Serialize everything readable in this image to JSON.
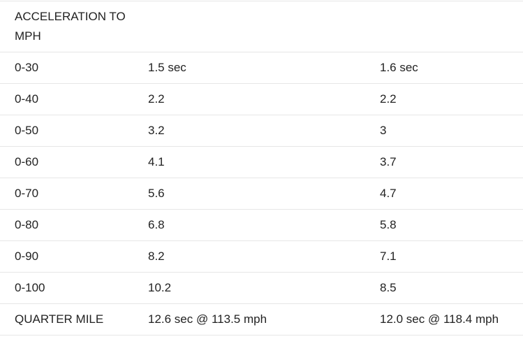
{
  "table": {
    "header": [
      "ACCELERATION TO MPH"
    ],
    "rows": [
      [
        "0-30",
        "1.5 sec",
        "1.6 sec"
      ],
      [
        "0-40",
        "2.2",
        "2.2"
      ],
      [
        "0-50",
        "3.2",
        "3"
      ],
      [
        "0-60",
        "4.1",
        "3.7"
      ],
      [
        "0-70",
        "5.6",
        "4.7"
      ],
      [
        "0-80",
        "6.8",
        "5.8"
      ],
      [
        "0-90",
        "8.2",
        "7.1"
      ],
      [
        "0-100",
        "10.2",
        "8.5"
      ],
      [
        "QUARTER MILE",
        "12.6 sec @ 113.5 mph",
        "12.0 sec @ 118.4 mph"
      ]
    ]
  }
}
